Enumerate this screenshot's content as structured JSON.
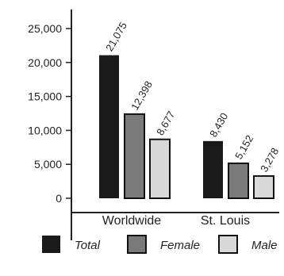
{
  "chart_data": {
    "type": "bar",
    "title": "",
    "xlabel": "",
    "ylabel": "",
    "categories": [
      "Worldwide",
      "St. Louis"
    ],
    "series": [
      {
        "name": "Total",
        "values": [
          21075,
          8430
        ],
        "labels": [
          "21,075",
          "8,430"
        ],
        "color": "#1a1a1a"
      },
      {
        "name": "Female",
        "values": [
          12398,
          5152
        ],
        "labels": [
          "12,398",
          "5,152"
        ],
        "color": "#7a7a7a"
      },
      {
        "name": "Male",
        "values": [
          8677,
          3278
        ],
        "labels": [
          "8,677",
          "3,278"
        ],
        "color": "#d8d8d8"
      }
    ],
    "ylim": [
      0,
      27000
    ],
    "yticks": [
      0,
      5000,
      10000,
      15000,
      20000,
      25000
    ],
    "ytick_labels": [
      "0",
      "5,000",
      "10,000",
      "15,000",
      "20,000",
      "25,000"
    ],
    "grid": false,
    "legend_position": "bottom"
  }
}
